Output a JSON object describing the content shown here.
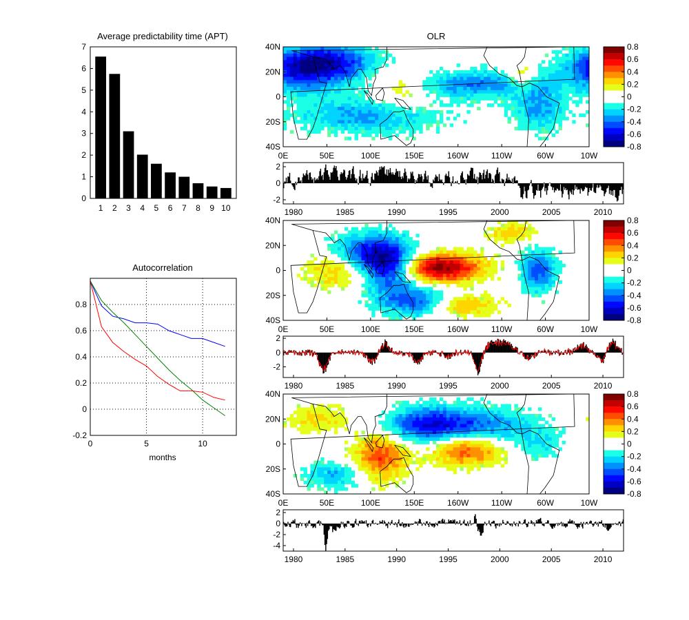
{
  "figure": {
    "olr_title": "OLR"
  },
  "chart_data": [
    {
      "type": "bar",
      "title": "Average predictability time (APT)",
      "categories": [
        "1",
        "2",
        "3",
        "4",
        "5",
        "6",
        "7",
        "8",
        "9",
        "10"
      ],
      "values": [
        6.55,
        5.75,
        3.1,
        2.02,
        1.6,
        1.2,
        1.0,
        0.7,
        0.55,
        0.48
      ],
      "ylim": [
        0,
        7
      ],
      "yticks": [
        "0",
        "1",
        "2",
        "3",
        "4",
        "5",
        "6",
        "7"
      ],
      "bar_color": "#000000"
    },
    {
      "type": "line",
      "title": "Autocorrelation",
      "xlabel": "months",
      "xlim": [
        0,
        13
      ],
      "ylim": [
        -0.2,
        1.0
      ],
      "xticks": [
        "0",
        "5",
        "10"
      ],
      "yticks": [
        "-0.2",
        "0",
        "0.2",
        "0.4",
        "0.6",
        "0.8"
      ],
      "grid": "dotted",
      "x": [
        0,
        1,
        2,
        3,
        4,
        5,
        6,
        7,
        8,
        9,
        10,
        11,
        12
      ],
      "series": [
        {
          "color": "#0000ff",
          "values": [
            0.98,
            0.79,
            0.71,
            0.69,
            0.66,
            0.66,
            0.65,
            0.6,
            0.57,
            0.54,
            0.54,
            0.51,
            0.48
          ]
        },
        {
          "color": "#008000",
          "values": [
            0.98,
            0.83,
            0.74,
            0.66,
            0.57,
            0.48,
            0.39,
            0.3,
            0.22,
            0.15,
            0.07,
            0.01,
            -0.05
          ]
        },
        {
          "color": "#ff0000",
          "values": [
            0.98,
            0.63,
            0.51,
            0.44,
            0.38,
            0.33,
            0.25,
            0.19,
            0.14,
            0.14,
            0.13,
            0.09,
            0.07
          ]
        }
      ]
    },
    {
      "type": "heatmap",
      "title": "OLR",
      "lat_labels": [
        "40N",
        "20N",
        "0",
        "20S",
        "40S"
      ],
      "lon_labels": [
        "0E",
        "50E",
        "100E",
        "150E",
        "160W",
        "110W",
        "60W",
        "10W"
      ],
      "colorbar": {
        "range": [
          -0.8,
          0.8
        ],
        "ticks": [
          "0.8",
          "0.6",
          "0.4",
          "0.2",
          "0",
          "-0.2",
          "-0.4",
          "-0.6",
          "-0.8"
        ]
      },
      "patterns": [
        {
          "name": "mode1",
          "blobs": [
            {
              "lon": 30,
              "lat": 22,
              "amp": -0.65,
              "w": 40,
              "h": 12
            },
            {
              "lon": 140,
              "lat": 5,
              "amp": 0.25,
              "w": 25,
              "h": 12
            },
            {
              "lon": 280,
              "lat": 15,
              "amp": 0.3,
              "w": 12,
              "h": 8
            },
            {
              "lon": 230,
              "lat": 10,
              "amp": -0.4,
              "w": 60,
              "h": 8
            },
            {
              "lon": 100,
              "lat": -15,
              "amp": -0.35,
              "w": 60,
              "h": 10
            },
            {
              "lon": 300,
              "lat": -10,
              "amp": -0.35,
              "w": 20,
              "h": 12
            },
            {
              "lon": 60,
              "lat": 30,
              "amp": -0.3,
              "w": 40,
              "h": 8
            }
          ]
        },
        {
          "name": "mode2",
          "blobs": [
            {
              "lon": 185,
              "lat": 2,
              "amp": 0.8,
              "w": 35,
              "h": 8
            },
            {
              "lon": 125,
              "lat": 5,
              "amp": -0.75,
              "w": 22,
              "h": 14
            },
            {
              "lon": 90,
              "lat": 15,
              "amp": -0.4,
              "w": 25,
              "h": 10
            },
            {
              "lon": 155,
              "lat": -25,
              "amp": -0.5,
              "w": 30,
              "h": 8
            },
            {
              "lon": 300,
              "lat": 0,
              "amp": -0.5,
              "w": 15,
              "h": 12
            },
            {
              "lon": 60,
              "lat": 0,
              "amp": 0.3,
              "w": 25,
              "h": 10
            },
            {
              "lon": 210,
              "lat": -28,
              "amp": 0.35,
              "w": 30,
              "h": 6
            },
            {
              "lon": 270,
              "lat": 30,
              "amp": 0.3,
              "w": 20,
              "h": 6
            }
          ]
        },
        {
          "name": "mode3",
          "blobs": [
            {
              "lon": 115,
              "lat": -10,
              "amp": 0.5,
              "w": 22,
              "h": 14
            },
            {
              "lon": 215,
              "lat": -5,
              "amp": 0.5,
              "w": 30,
              "h": 9
            },
            {
              "lon": 170,
              "lat": 15,
              "amp": -0.6,
              "w": 35,
              "h": 10
            },
            {
              "lon": 240,
              "lat": 15,
              "amp": -0.35,
              "w": 40,
              "h": 10
            },
            {
              "lon": 60,
              "lat": -25,
              "amp": -0.3,
              "w": 25,
              "h": 8
            },
            {
              "lon": 40,
              "lat": 20,
              "amp": 0.25,
              "w": 25,
              "h": 8
            },
            {
              "lon": 300,
              "lat": 0,
              "amp": -0.2,
              "w": 20,
              "h": 10
            }
          ]
        }
      ]
    },
    {
      "type": "bar",
      "title": "",
      "xlim": [
        1979,
        2012
      ],
      "xticks": [
        "1980",
        "1985",
        "1990",
        "1995",
        "2000",
        "2005",
        "2010"
      ],
      "panels": [
        {
          "ylim": [
            -2.5,
            2.5
          ],
          "yticks": [
            "-2",
            "0",
            "2"
          ],
          "pc": "mode1",
          "ts_shape": "trend",
          "overlay": false
        },
        {
          "ylim": [
            -3.5,
            2.3
          ],
          "yticks": [
            "-2",
            "0",
            "2"
          ],
          "pc": "mode2",
          "ts_shape": "enso",
          "overlay": true,
          "overlay_color": "#ff0000"
        },
        {
          "ylim": [
            -5,
            2.5
          ],
          "yticks": [
            "-4",
            "-2",
            "0",
            "2"
          ],
          "pc": "mode3",
          "ts_shape": "mixed",
          "overlay": false
        }
      ]
    }
  ]
}
